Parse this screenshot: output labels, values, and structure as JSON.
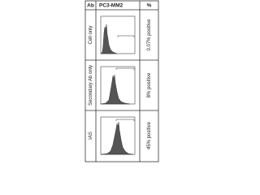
{
  "header": {
    "ab": "Ab",
    "sample": "PC3-MM2",
    "percent": "%"
  },
  "rows": [
    {
      "label": "Cell only",
      "percent": "0.07% positive"
    },
    {
      "label": "Secondary Ab only",
      "percent": "8% positive"
    },
    {
      "label": "IAS",
      "percent": "45% positive"
    }
  ]
}
